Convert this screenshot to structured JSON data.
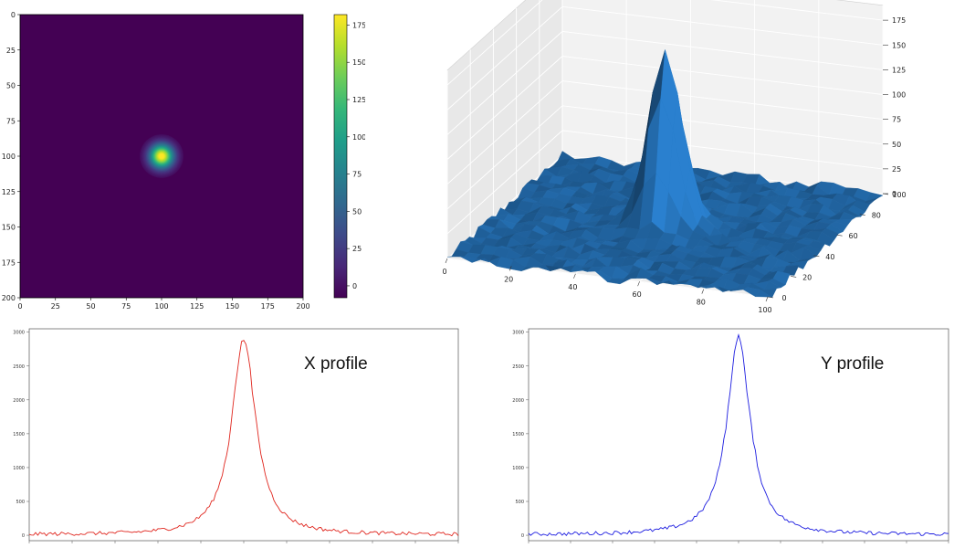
{
  "chart_data": [
    {
      "type": "heatmap",
      "title": "",
      "xlabel": "",
      "ylabel": "",
      "xlim": [
        0,
        200
      ],
      "ylim": [
        200,
        0
      ],
      "xticks": [
        "0",
        "25",
        "50",
        "75",
        "100",
        "125",
        "150",
        "175",
        "200"
      ],
      "yticks": [
        "0",
        "25",
        "50",
        "75",
        "100",
        "125",
        "150",
        "175",
        "200"
      ],
      "colormap": "viridis",
      "background_value": 0,
      "peak": {
        "x": 100,
        "y": 100,
        "value": 180,
        "sigma": 6
      },
      "colorbar": {
        "range": [
          -8,
          182
        ],
        "ticks": [
          "0",
          "25",
          "50",
          "75",
          "100",
          "125",
          "150",
          "175"
        ]
      },
      "colors": {
        "low": "#440154",
        "high": "#fde725"
      }
    },
    {
      "type": "surface3d",
      "title": "",
      "xlim": [
        0,
        100
      ],
      "ylim": [
        0,
        100
      ],
      "zlim": [
        0,
        180
      ],
      "xticks": [
        "0",
        "20",
        "40",
        "60",
        "80",
        "100"
      ],
      "yticks": [
        "0",
        "20",
        "40",
        "60",
        "80",
        "100"
      ],
      "zticks": [
        "0",
        "25",
        "50",
        "75",
        "100",
        "125",
        "150",
        "175"
      ],
      "peak": {
        "x": 50,
        "y": 50,
        "z": 180
      },
      "noise_level": 5,
      "color": "#1f5f99"
    },
    {
      "type": "line",
      "annotation": "X profile",
      "ylim": [
        -80,
        3050
      ],
      "yticks": [
        "0",
        "500",
        "1000",
        "1500",
        "2000",
        "2500",
        "3000"
      ],
      "xlim": [
        0,
        200
      ],
      "peak": {
        "x": 100,
        "y": 2930
      },
      "baseline": 10,
      "series": [
        {
          "color": "#e0261e"
        }
      ]
    },
    {
      "type": "line",
      "annotation": "Y profile",
      "ylim": [
        -80,
        3050
      ],
      "yticks": [
        "0",
        "500",
        "1000",
        "1500",
        "2000",
        "2500",
        "3000"
      ],
      "xlim": [
        0,
        200
      ],
      "peak": {
        "x": 100,
        "y": 2930
      },
      "baseline": 10,
      "series": [
        {
          "color": "#1c1ce0"
        }
      ]
    }
  ]
}
